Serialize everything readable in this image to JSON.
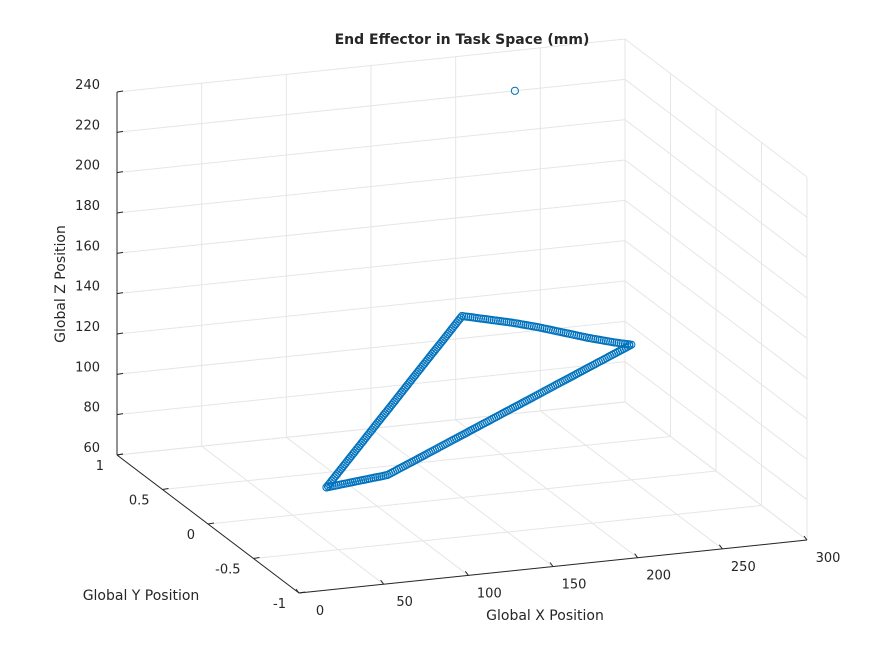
{
  "chart_data": {
    "type": "scatter",
    "projection": "3d",
    "title": "End Effector in  Task Space (mm)",
    "xlabel": "Global X Position",
    "ylabel": "Global Y Position",
    "zlabel": "Global Z Position",
    "xlim": [
      0,
      300
    ],
    "ylim": [
      -1,
      1
    ],
    "zlim": [
      60,
      240
    ],
    "xticks": [
      "0",
      "50",
      "100",
      "150",
      "200",
      "250",
      "300"
    ],
    "yticks": [
      "-1",
      "-0.5",
      "0",
      "0.5",
      "1"
    ],
    "zticks": [
      "60",
      "80",
      "100",
      "120",
      "140",
      "160",
      "180",
      "200",
      "220",
      "240"
    ],
    "grid": true,
    "marker": "circle-open",
    "color": "#0072bd",
    "vertices": [
      {
        "x": 70,
        "y": 0,
        "z": 72
      },
      {
        "x": 150,
        "y": 0,
        "z": 150
      },
      {
        "x": 250,
        "y": 0,
        "z": 127
      }
    ],
    "series": [
      {
        "points": [
          {
            "x": 70,
            "y": 0,
            "z": 72
          },
          {
            "x": 80,
            "y": 0,
            "z": 81.8
          },
          {
            "x": 90,
            "y": 0,
            "z": 91.5
          },
          {
            "x": 100,
            "y": 0,
            "z": 101.3
          },
          {
            "x": 110,
            "y": 0,
            "z": 111
          },
          {
            "x": 120,
            "y": 0,
            "z": 120.8
          },
          {
            "x": 130,
            "y": 0,
            "z": 130.5
          },
          {
            "x": 140,
            "y": 0,
            "z": 140.2
          },
          {
            "x": 150,
            "y": 0,
            "z": 150
          },
          {
            "x": 165,
            "y": 0,
            "z": 147
          },
          {
            "x": 180,
            "y": 0,
            "z": 144
          },
          {
            "x": 195,
            "y": 0,
            "z": 140.5
          },
          {
            "x": 210,
            "y": 0,
            "z": 136.5
          },
          {
            "x": 225,
            "y": 0,
            "z": 132.5
          },
          {
            "x": 240,
            "y": 0,
            "z": 129
          },
          {
            "x": 250,
            "y": 0,
            "z": 127
          },
          {
            "x": 232,
            "y": 0,
            "z": 120.5
          },
          {
            "x": 214,
            "y": 0,
            "z": 114
          },
          {
            "x": 196,
            "y": 0,
            "z": 107.5
          },
          {
            "x": 178,
            "y": 0,
            "z": 101
          },
          {
            "x": 160,
            "y": 0,
            "z": 94.5
          },
          {
            "x": 142,
            "y": 0,
            "z": 88
          },
          {
            "x": 124,
            "y": 0,
            "z": 81.5
          },
          {
            "x": 106,
            "y": 0,
            "z": 75
          },
          {
            "x": 88,
            "y": 0,
            "z": 73.5
          },
          {
            "x": 70,
            "y": 0,
            "z": 72
          },
          {
            "x": 235,
            "y": 1,
            "z": 220
          }
        ]
      }
    ]
  }
}
